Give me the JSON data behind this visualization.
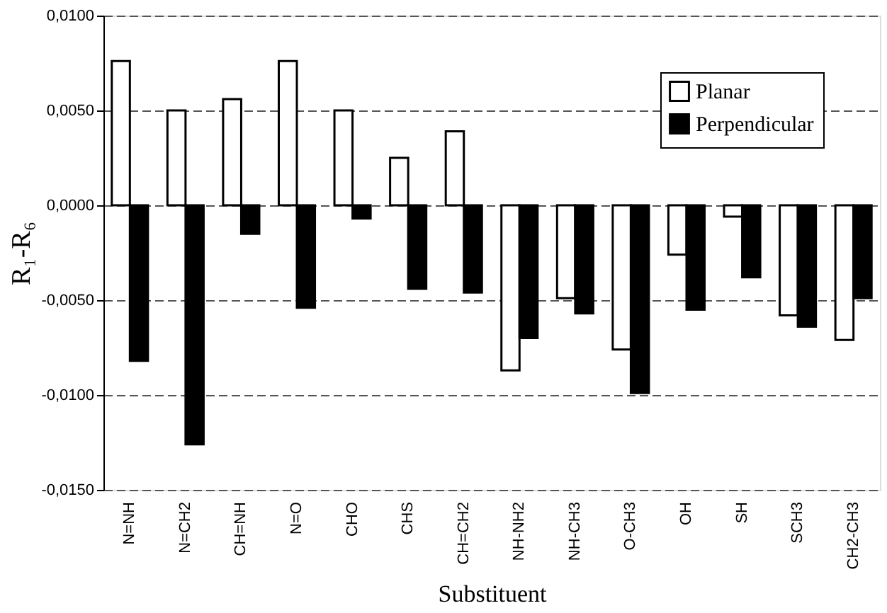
{
  "chart_data": {
    "type": "bar",
    "xlabel": "Substituent",
    "ylabel": "R₁-R₆",
    "categories": [
      "N=NH",
      "N=CH2",
      "CH=NH",
      "N=O",
      "CHO",
      "CHS",
      "CH=CH2",
      "NH-NH2",
      "NH-CH3",
      "O-CH3",
      "OH",
      "SH",
      "SCH3",
      "CH2-CH3"
    ],
    "series": [
      {
        "name": "Planar",
        "color": "#ffffff",
        "values": [
          0.0076,
          0.005,
          0.0056,
          0.0076,
          0.005,
          0.0025,
          0.0039,
          -0.0087,
          -0.0049,
          -0.0076,
          -0.0026,
          -0.0006,
          -0.0058,
          -0.0071
        ]
      },
      {
        "name": "Perpendicular",
        "color": "#000000",
        "values": [
          -0.0082,
          -0.0126,
          -0.0015,
          -0.0054,
          -0.0007,
          -0.0044,
          -0.0046,
          -0.007,
          -0.0057,
          -0.0099,
          -0.0055,
          -0.0038,
          -0.0064,
          -0.0049
        ]
      }
    ],
    "ylim": [
      -0.015,
      0.01
    ],
    "yticks": [
      {
        "value": -0.015,
        "label": "-0,0150"
      },
      {
        "value": -0.01,
        "label": "-0,0100"
      },
      {
        "value": -0.005,
        "label": "-0,0050"
      },
      {
        "value": 0,
        "label": "0,0000"
      },
      {
        "value": 0.005,
        "label": "0,0050"
      },
      {
        "value": 0.01,
        "label": "0,0100"
      }
    ],
    "grid": "y",
    "legend": "top right"
  }
}
